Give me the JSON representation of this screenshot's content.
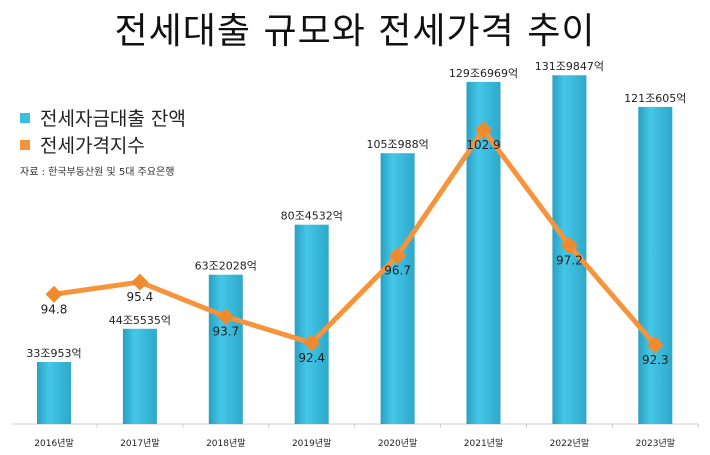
{
  "chart_data": {
    "type": "bar+line",
    "title": "전세대출 규모와 전세가격 추이",
    "categories": [
      "2016년말",
      "2017년말",
      "2018년말",
      "2019년말",
      "2020년말",
      "2021년말",
      "2022년말",
      "2023년말"
    ],
    "series": [
      {
        "name": "전세자금대출 잔액",
        "type": "bar",
        "color": "#3BBFE0",
        "unit": "조원",
        "values": [
          33.0953,
          44.5535,
          63.2028,
          80.4532,
          105.0988,
          129.6969,
          131.9847,
          121.0605
        ],
        "labels": [
          "33조953억",
          "44조5535억",
          "63조2028억",
          "80조4532억",
          "105조988억",
          "129조6969억",
          "131조9847억",
          "121조605억"
        ]
      },
      {
        "name": "전세가격지수",
        "type": "line",
        "color": "#F7943B",
        "values": [
          94.8,
          95.4,
          93.7,
          92.4,
          96.7,
          102.9,
          97.2,
          92.3
        ],
        "labels": [
          "94.8",
          "95.4",
          "93.7",
          "92.4",
          "96.7",
          "102.9",
          "97.2",
          "92.3"
        ]
      }
    ],
    "legend": "top-left",
    "source": "자료 : 한국부동산원 및 5대 주요은행",
    "grid": false
  }
}
